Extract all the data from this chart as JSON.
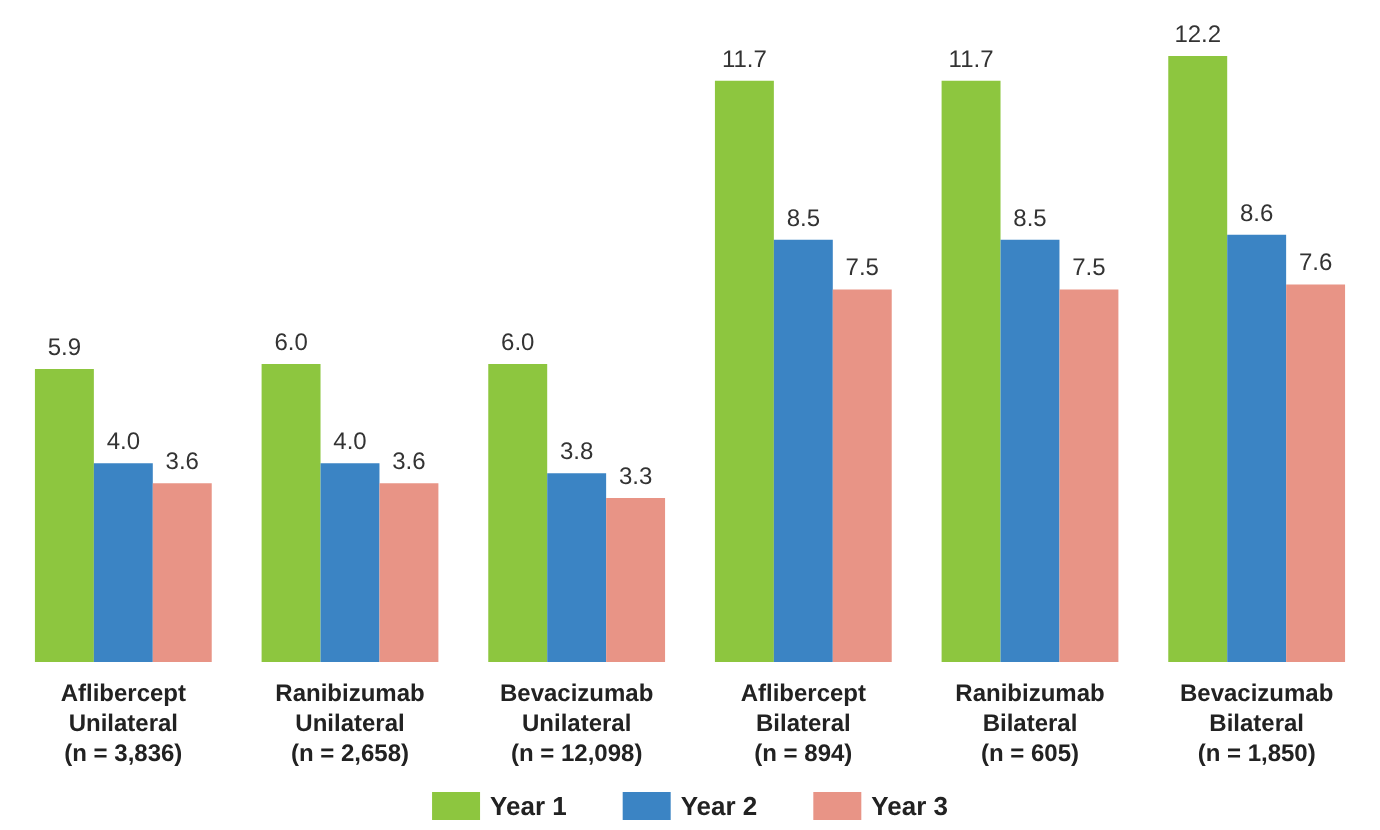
{
  "chart_data": {
    "type": "bar",
    "categories": [
      "Aflibercept\nUnilateral\n(n = 3,836)",
      "Ranibizumab\nUnilateral\n(n = 2,658)",
      "Bevacizumab\nUnilateral\n(n = 12,098)",
      "Aflibercept\nBilateral\n(n = 894)",
      "Ranibizumab\nBilateral\n(n = 605)",
      "Bevacizumab\nBilateral\n(n = 1,850)"
    ],
    "series": [
      {
        "name": "Year 1",
        "color": "#8dc63f",
        "values": [
          5.9,
          6.0,
          6.0,
          11.7,
          11.7,
          12.2
        ],
        "value_labels": [
          "5.9",
          "6.0",
          "6.0",
          "11.7",
          "11.7",
          "12.2"
        ]
      },
      {
        "name": "Year 2",
        "color": "#3b84c4",
        "values": [
          4.0,
          4.0,
          3.8,
          8.5,
          8.5,
          8.6
        ],
        "value_labels": [
          "4.0",
          "4.0",
          "3.8",
          "8.5",
          "8.5",
          "8.6"
        ]
      },
      {
        "name": "Year 3",
        "color": "#e89486",
        "values": [
          3.6,
          3.6,
          3.3,
          7.5,
          7.5,
          7.6
        ],
        "value_labels": [
          "3.6",
          "3.6",
          "3.3",
          "7.5",
          "7.5",
          "7.6"
        ]
      }
    ],
    "legend": "bottom"
  }
}
